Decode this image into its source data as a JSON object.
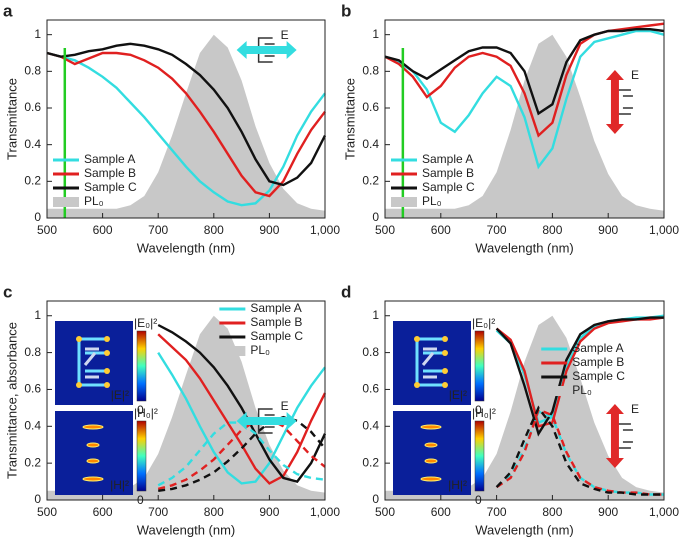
{
  "chart_data": [
    {
      "type": "line",
      "panel": "a",
      "xlabel": "Wavelength (nm)",
      "ylabel": "Transmittance",
      "field_label": "E",
      "field_dir": "horizontal",
      "field_color": "#33dde0",
      "xlim": [
        500,
        1000
      ],
      "ylim": [
        0,
        1.08
      ],
      "xticks": [
        500,
        600,
        700,
        800,
        900,
        {
          "value": 1000,
          "label": "1,000"
        }
      ],
      "yticks": [
        0,
        0.2,
        0.4,
        0.6,
        0.8,
        1
      ],
      "vline": {
        "x": 532,
        "color": "#22cc22"
      },
      "legend": "lower left",
      "x": [
        500,
        525,
        550,
        575,
        600,
        625,
        650,
        675,
        700,
        725,
        750,
        775,
        800,
        825,
        850,
        875,
        900,
        925,
        950,
        975,
        1000
      ],
      "series": [
        {
          "name": "PL₀",
          "color": "#c8c8c8",
          "fill": true,
          "values": [
            0.05,
            0.05,
            0.05,
            0.05,
            0.05,
            0.05,
            0.07,
            0.12,
            0.25,
            0.45,
            0.68,
            0.9,
            1.0,
            0.93,
            0.75,
            0.5,
            0.3,
            0.16,
            0.08,
            0.05,
            0.04
          ]
        },
        {
          "name": "Sample A",
          "color": "#33dde0",
          "values": [
            0.9,
            0.88,
            0.86,
            0.82,
            0.77,
            0.71,
            0.63,
            0.55,
            0.46,
            0.37,
            0.28,
            0.2,
            0.14,
            0.09,
            0.07,
            0.08,
            0.15,
            0.28,
            0.45,
            0.58,
            0.68
          ]
        },
        {
          "name": "Sample B",
          "color": "#e02020",
          "values": [
            0.9,
            0.88,
            0.84,
            0.87,
            0.9,
            0.9,
            0.89,
            0.86,
            0.82,
            0.76,
            0.68,
            0.58,
            0.47,
            0.35,
            0.23,
            0.14,
            0.12,
            0.2,
            0.35,
            0.48,
            0.58
          ]
        },
        {
          "name": "Sample C",
          "color": "#111111",
          "values": [
            0.9,
            0.88,
            0.89,
            0.91,
            0.92,
            0.94,
            0.95,
            0.94,
            0.92,
            0.89,
            0.84,
            0.78,
            0.7,
            0.6,
            0.47,
            0.32,
            0.2,
            0.18,
            0.22,
            0.3,
            0.45
          ]
        }
      ]
    },
    {
      "type": "line",
      "panel": "b",
      "xlabel": "Wavelength (nm)",
      "ylabel": "Transmittance",
      "field_label": "E",
      "field_dir": "vertical",
      "field_color": "#e02828",
      "xlim": [
        500,
        1000
      ],
      "ylim": [
        0,
        1.08
      ],
      "xticks": [
        500,
        600,
        700,
        800,
        900,
        {
          "value": 1000,
          "label": "1,000"
        }
      ],
      "yticks": [
        0,
        0.2,
        0.4,
        0.6,
        0.8,
        1
      ],
      "vline": {
        "x": 532,
        "color": "#22cc22"
      },
      "legend": "lower left",
      "x": [
        500,
        525,
        550,
        575,
        600,
        625,
        650,
        675,
        700,
        725,
        750,
        775,
        800,
        825,
        850,
        875,
        900,
        925,
        950,
        975,
        1000
      ],
      "series": [
        {
          "name": "PL₀",
          "color": "#c8c8c8",
          "fill": true,
          "values": [
            0.05,
            0.05,
            0.05,
            0.05,
            0.05,
            0.05,
            0.07,
            0.12,
            0.25,
            0.48,
            0.75,
            0.95,
            1.0,
            0.88,
            0.66,
            0.42,
            0.24,
            0.12,
            0.07,
            0.05,
            0.04
          ]
        },
        {
          "name": "Sample A",
          "color": "#33dde0",
          "values": [
            0.88,
            0.85,
            0.8,
            0.7,
            0.52,
            0.47,
            0.56,
            0.68,
            0.77,
            0.72,
            0.55,
            0.28,
            0.38,
            0.65,
            0.88,
            0.96,
            0.98,
            1.0,
            1.02,
            1.02,
            1.0
          ]
        },
        {
          "name": "Sample B",
          "color": "#e02020",
          "values": [
            0.88,
            0.84,
            0.77,
            0.66,
            0.72,
            0.82,
            0.88,
            0.9,
            0.88,
            0.83,
            0.68,
            0.45,
            0.52,
            0.78,
            0.95,
            1.0,
            1.02,
            1.03,
            1.04,
            1.05,
            1.06
          ]
        },
        {
          "name": "Sample C",
          "color": "#111111",
          "values": [
            0.88,
            0.86,
            0.8,
            0.76,
            0.81,
            0.86,
            0.91,
            0.93,
            0.93,
            0.9,
            0.8,
            0.57,
            0.62,
            0.85,
            0.97,
            1.0,
            1.02,
            1.02,
            1.03,
            1.03,
            1.02
          ]
        }
      ]
    },
    {
      "type": "line",
      "panel": "c",
      "xlabel": "Wavelength (nm)",
      "ylabel": "Transmittance, absorbance",
      "field_label": "E",
      "field_dir": "horizontal",
      "field_color": "#33dde0",
      "xlim": [
        500,
        1000
      ],
      "ylim": [
        0,
        1.08
      ],
      "xticks": [
        500,
        600,
        700,
        800,
        900,
        {
          "value": 1000,
          "label": "1,000"
        }
      ],
      "yticks": [
        0,
        0.2,
        0.4,
        0.6,
        0.8,
        1
      ],
      "legend": "upper right",
      "insets": [
        {
          "top_label": "|E₀|²",
          "map_label": "|E|²",
          "zero_label": "0"
        },
        {
          "top_label": "|H₀|²",
          "map_label": "|H|²",
          "zero_label": "0"
        }
      ],
      "x": [
        500,
        525,
        550,
        575,
        600,
        625,
        650,
        675,
        700,
        725,
        750,
        775,
        800,
        825,
        850,
        875,
        900,
        925,
        950,
        975,
        1000
      ],
      "series": [
        {
          "name": "PL₀",
          "color": "#c8c8c8",
          "fill": true,
          "values": [
            0.05,
            0.05,
            0.05,
            0.05,
            0.05,
            0.05,
            0.07,
            0.12,
            0.25,
            0.45,
            0.68,
            0.9,
            1.0,
            0.93,
            0.75,
            0.5,
            0.3,
            0.16,
            0.08,
            0.05,
            0.04
          ]
        },
        {
          "name": "Sample A",
          "color": "#33dde0",
          "values": [
            null,
            null,
            null,
            null,
            null,
            null,
            null,
            null,
            0.8,
            0.68,
            0.55,
            0.4,
            0.26,
            0.15,
            0.09,
            0.1,
            0.2,
            0.35,
            0.5,
            0.62,
            0.72
          ]
        },
        {
          "name": "Sample B",
          "color": "#e02020",
          "values": [
            null,
            null,
            null,
            null,
            null,
            null,
            null,
            null,
            0.9,
            0.83,
            0.76,
            0.66,
            0.54,
            0.42,
            0.3,
            0.17,
            0.09,
            0.13,
            0.26,
            0.43,
            0.58
          ]
        },
        {
          "name": "Sample C",
          "color": "#111111",
          "values": [
            null,
            null,
            null,
            null,
            null,
            null,
            null,
            null,
            0.95,
            0.91,
            0.86,
            0.8,
            0.72,
            0.62,
            0.5,
            0.36,
            0.22,
            0.12,
            0.1,
            0.2,
            0.36
          ]
        },
        {
          "color": "#33dde0",
          "dash": true,
          "values": [
            null,
            null,
            null,
            null,
            null,
            null,
            null,
            null,
            0.08,
            0.12,
            0.18,
            0.27,
            0.36,
            0.42,
            0.42,
            0.36,
            0.27,
            0.19,
            0.14,
            0.12,
            0.11
          ]
        },
        {
          "color": "#e02020",
          "dash": true,
          "values": [
            null,
            null,
            null,
            null,
            null,
            null,
            null,
            null,
            0.06,
            0.08,
            0.11,
            0.16,
            0.22,
            0.3,
            0.38,
            0.43,
            0.44,
            0.4,
            0.32,
            0.24,
            0.18
          ]
        },
        {
          "color": "#111111",
          "dash": true,
          "values": [
            null,
            null,
            null,
            null,
            null,
            null,
            null,
            null,
            0.05,
            0.06,
            0.08,
            0.11,
            0.15,
            0.21,
            0.28,
            0.36,
            0.42,
            0.45,
            0.43,
            0.37,
            0.28
          ]
        }
      ]
    },
    {
      "type": "line",
      "panel": "d",
      "xlabel": "Wavelength (nm)",
      "field_label": "E",
      "field_dir": "vertical",
      "field_color": "#e02828",
      "xlim": [
        500,
        1000
      ],
      "ylim": [
        0,
        1.08
      ],
      "xticks": [
        500,
        600,
        700,
        800,
        900,
        {
          "value": 1000,
          "label": "1,000"
        }
      ],
      "yticks": [
        0,
        0.2,
        0.4,
        0.6,
        0.8,
        1
      ],
      "legend": "right",
      "insets": [
        {
          "top_label": "|E₀|²",
          "map_label": "|E|²",
          "zero_label": "0"
        },
        {
          "top_label": "|H₀|²",
          "map_label": "|H|²",
          "zero_label": "0"
        }
      ],
      "x": [
        500,
        525,
        550,
        575,
        600,
        625,
        650,
        675,
        700,
        725,
        750,
        775,
        800,
        825,
        850,
        875,
        900,
        925,
        950,
        975,
        1000
      ],
      "series": [
        {
          "name": "PL₀",
          "color": "#c8c8c8",
          "fill": true,
          "values": [
            0.05,
            0.05,
            0.05,
            0.05,
            0.05,
            0.05,
            0.07,
            0.12,
            0.25,
            0.48,
            0.75,
            0.95,
            1.0,
            0.88,
            0.66,
            0.42,
            0.24,
            0.12,
            0.07,
            0.05,
            0.04
          ]
        },
        {
          "name": "Sample A",
          "color": "#33dde0",
          "values": [
            null,
            null,
            null,
            null,
            null,
            null,
            null,
            null,
            0.92,
            0.85,
            0.68,
            0.42,
            0.45,
            0.72,
            0.88,
            0.94,
            0.97,
            0.98,
            0.99,
            0.99,
            1.0
          ]
        },
        {
          "name": "Sample B",
          "color": "#e02020",
          "values": [
            null,
            null,
            null,
            null,
            null,
            null,
            null,
            null,
            0.93,
            0.87,
            0.7,
            0.4,
            0.42,
            0.7,
            0.86,
            0.93,
            0.96,
            0.97,
            0.98,
            0.98,
            0.99
          ]
        },
        {
          "name": "Sample C",
          "color": "#111111",
          "values": [
            null,
            null,
            null,
            null,
            null,
            null,
            null,
            null,
            0.93,
            0.85,
            0.62,
            0.36,
            0.48,
            0.76,
            0.9,
            0.95,
            0.97,
            0.98,
            0.98,
            0.99,
            0.99
          ]
        },
        {
          "color": "#33dde0",
          "dash": true,
          "values": [
            null,
            null,
            null,
            null,
            null,
            null,
            null,
            null,
            0.07,
            0.13,
            0.28,
            0.48,
            0.45,
            0.25,
            0.12,
            0.07,
            0.05,
            0.04,
            0.04,
            0.03,
            0.03
          ]
        },
        {
          "color": "#e02020",
          "dash": true,
          "values": [
            null,
            null,
            null,
            null,
            null,
            null,
            null,
            null,
            0.07,
            0.12,
            0.26,
            0.49,
            0.46,
            0.26,
            0.12,
            0.07,
            0.05,
            0.04,
            0.04,
            0.03,
            0.03
          ]
        },
        {
          "color": "#111111",
          "dash": true,
          "values": [
            null,
            null,
            null,
            null,
            null,
            null,
            null,
            null,
            0.07,
            0.15,
            0.33,
            0.5,
            0.4,
            0.2,
            0.09,
            0.06,
            0.04,
            0.04,
            0.03,
            0.03,
            0.03
          ]
        }
      ]
    }
  ]
}
